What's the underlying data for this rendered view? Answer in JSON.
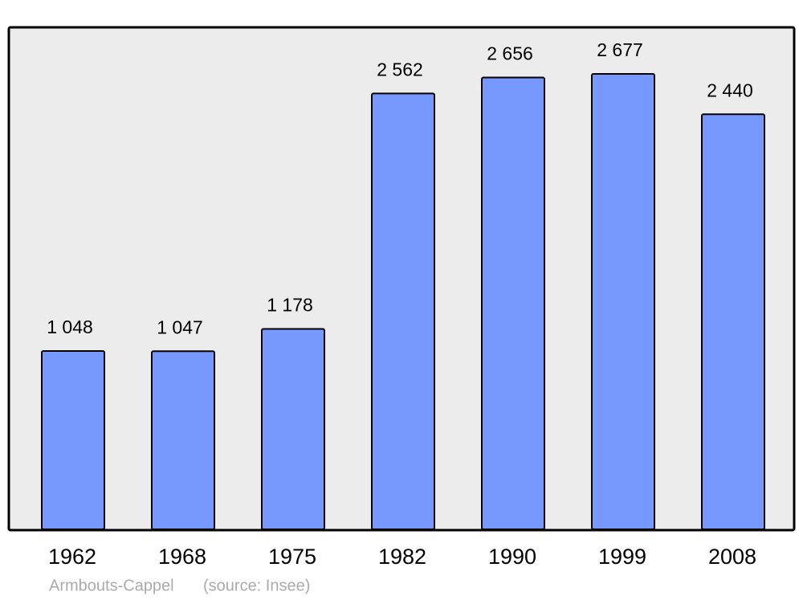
{
  "chart_data": {
    "type": "bar",
    "title": "Armbouts-Cappel",
    "source": "(source: Insee)",
    "categories": [
      "1962",
      "1968",
      "1975",
      "1982",
      "1990",
      "1999",
      "2008"
    ],
    "values": [
      1048,
      1047,
      1178,
      2562,
      2656,
      2677,
      2440
    ],
    "value_labels": [
      "1 048",
      "1 047",
      "1 178",
      "2 562",
      "2 656",
      "2 677",
      "2 440"
    ],
    "color": "#7799ff"
  }
}
